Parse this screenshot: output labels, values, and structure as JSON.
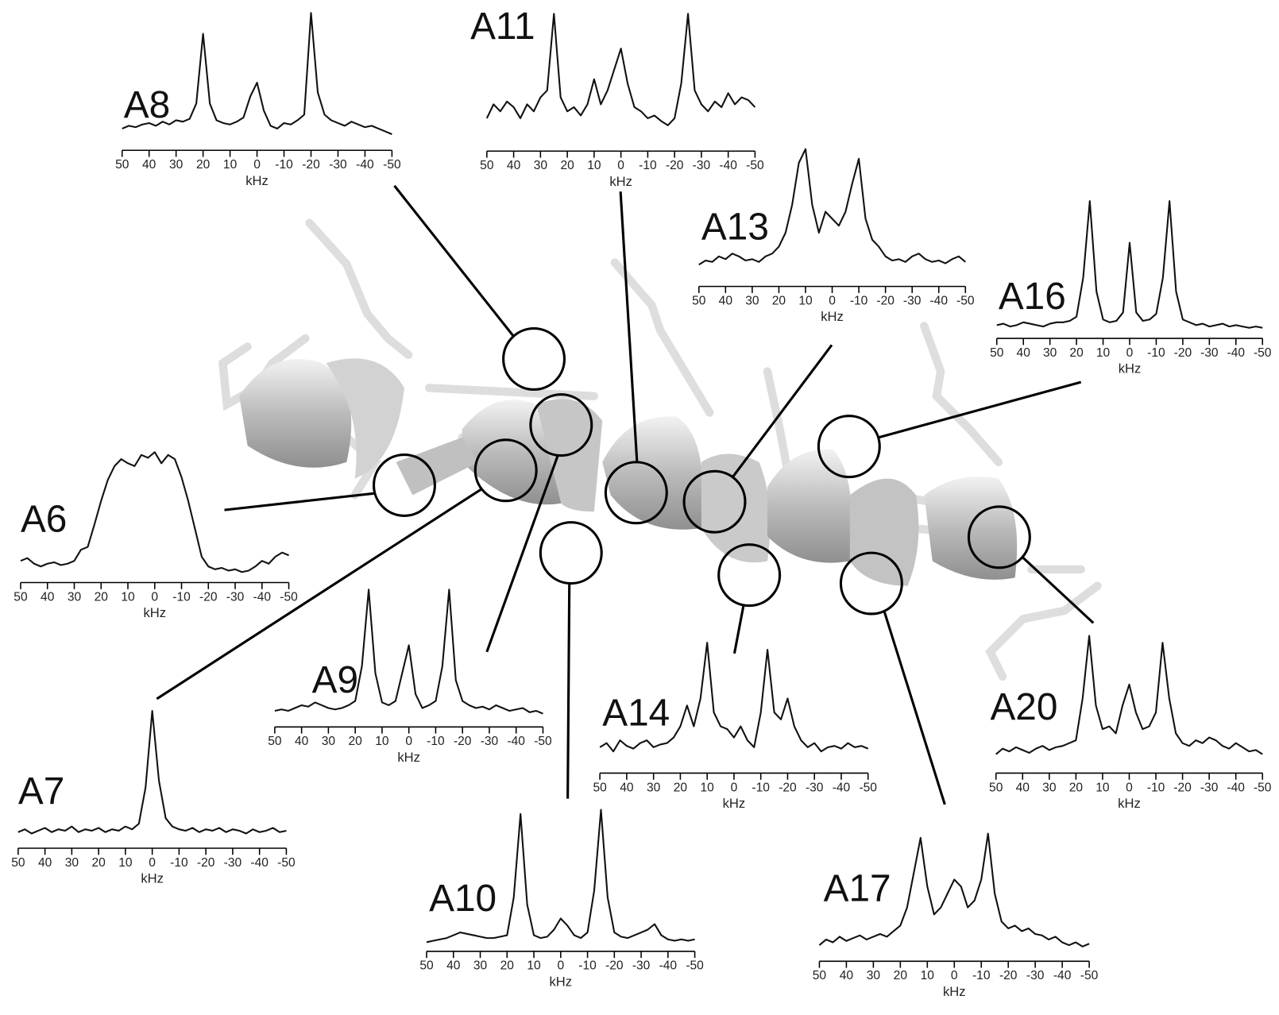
{
  "chart_data": [
    {
      "type": "line",
      "title": "A8",
      "x_label": "kHz",
      "color": "#111111",
      "xlim": [
        50,
        -50
      ],
      "ylim": [
        0,
        100
      ],
      "xticks": [
        50,
        40,
        30,
        20,
        10,
        0,
        -10,
        -20,
        -30,
        -40,
        -50
      ],
      "x": [
        50,
        47.5,
        45,
        42.5,
        40,
        37.5,
        35,
        32.5,
        30,
        27.5,
        25,
        22.5,
        20,
        17.5,
        15,
        12.5,
        10,
        7.5,
        5,
        2.5,
        0,
        -2.5,
        -5,
        -7.5,
        -10,
        -12.5,
        -15,
        -17.5,
        -20,
        -22.5,
        -25,
        -27.5,
        -30,
        -32.5,
        -35,
        -37.5,
        -40,
        -42.5,
        -45,
        -47.5,
        -50
      ],
      "values": [
        12,
        14,
        13,
        15,
        16,
        14,
        17,
        15,
        18,
        17,
        19,
        30,
        80,
        30,
        18,
        16,
        15,
        17,
        20,
        35,
        45,
        25,
        14,
        12,
        16,
        15,
        18,
        22,
        95,
        38,
        22,
        18,
        16,
        14,
        17,
        15,
        13,
        14,
        12,
        10,
        8
      ]
    },
    {
      "type": "line",
      "title": "A11",
      "x_label": "kHz",
      "color": "#111111",
      "xlim": [
        50,
        -50
      ],
      "ylim": [
        0,
        100
      ],
      "xticks": [
        50,
        40,
        30,
        20,
        10,
        0,
        -10,
        -20,
        -30,
        -40,
        -50
      ],
      "x": [
        50,
        47.5,
        45,
        42.5,
        40,
        37.5,
        35,
        32.5,
        30,
        27.5,
        25,
        22.5,
        20,
        17.5,
        15,
        12.5,
        10,
        7.5,
        5,
        2.5,
        0,
        -2.5,
        -5,
        -7.5,
        -10,
        -12.5,
        -15,
        -17.5,
        -20,
        -22.5,
        -25,
        -27.5,
        -30,
        -32.5,
        -35,
        -37.5,
        -40,
        -42.5,
        -45,
        -47.5,
        -50
      ],
      "values": [
        20,
        30,
        25,
        32,
        28,
        20,
        30,
        25,
        35,
        40,
        95,
        35,
        25,
        28,
        22,
        30,
        48,
        30,
        40,
        55,
        70,
        45,
        28,
        25,
        20,
        22,
        18,
        15,
        20,
        45,
        95,
        40,
        30,
        25,
        32,
        28,
        38,
        30,
        35,
        33,
        28
      ]
    },
    {
      "type": "line",
      "title": "A13",
      "x_label": "kHz",
      "color": "#111111",
      "xlim": [
        50,
        -50
      ],
      "ylim": [
        0,
        100
      ],
      "xticks": [
        50,
        40,
        30,
        20,
        10,
        0,
        -10,
        -20,
        -30,
        -40,
        -50
      ],
      "x": [
        50,
        47.5,
        45,
        42.5,
        40,
        37.5,
        35,
        32.5,
        30,
        27.5,
        25,
        22.5,
        20,
        17.5,
        15,
        12.5,
        10,
        7.5,
        5,
        2.5,
        0,
        -2.5,
        -5,
        -7.5,
        -10,
        -12.5,
        -15,
        -17.5,
        -20,
        -22.5,
        -25,
        -27.5,
        -30,
        -32.5,
        -35,
        -37.5,
        -40,
        -42.5,
        -45,
        -47.5,
        -50
      ],
      "values": [
        12,
        15,
        14,
        18,
        16,
        20,
        18,
        15,
        16,
        14,
        18,
        20,
        25,
        35,
        55,
        85,
        95,
        55,
        35,
        50,
        45,
        40,
        50,
        70,
        88,
        45,
        30,
        25,
        18,
        15,
        16,
        14,
        18,
        20,
        16,
        14,
        15,
        13,
        16,
        18,
        14
      ]
    },
    {
      "type": "line",
      "title": "A16",
      "x_label": "kHz",
      "color": "#111111",
      "xlim": [
        50,
        -50
      ],
      "ylim": [
        0,
        100
      ],
      "xticks": [
        50,
        40,
        30,
        20,
        10,
        0,
        -10,
        -20,
        -30,
        -40,
        -50
      ],
      "x": [
        50,
        47.5,
        45,
        42.5,
        40,
        37.5,
        35,
        32.5,
        30,
        27.5,
        25,
        22.5,
        20,
        17.5,
        15,
        12.5,
        10,
        7.5,
        5,
        2.5,
        0,
        -2.5,
        -5,
        -7.5,
        -10,
        -12.5,
        -15,
        -17.5,
        -20,
        -22.5,
        -25,
        -27.5,
        -30,
        -32.5,
        -35,
        -37.5,
        -40,
        -42.5,
        -45,
        -47.5,
        -50
      ],
      "values": [
        6,
        7,
        5,
        6,
        8,
        7,
        6,
        5,
        7,
        8,
        8,
        9,
        12,
        40,
        95,
        30,
        10,
        8,
        9,
        15,
        65,
        15,
        9,
        10,
        14,
        40,
        95,
        30,
        10,
        8,
        6,
        7,
        5,
        6,
        7,
        5,
        6,
        5,
        4,
        5,
        4
      ]
    },
    {
      "type": "line",
      "title": "A6",
      "x_label": "kHz",
      "color": "#111111",
      "xlim": [
        50,
        -50
      ],
      "ylim": [
        0,
        100
      ],
      "xticks": [
        50,
        40,
        30,
        20,
        10,
        0,
        -10,
        -20,
        -30,
        -40,
        -50
      ],
      "x": [
        50,
        47.5,
        45,
        42.5,
        40,
        37.5,
        35,
        32.5,
        30,
        27.5,
        25,
        22.5,
        20,
        17.5,
        15,
        12.5,
        10,
        7.5,
        5,
        2.5,
        0,
        -2.5,
        -5,
        -7.5,
        -10,
        -12.5,
        -15,
        -17.5,
        -20,
        -22.5,
        -25,
        -27.5,
        -30,
        -32.5,
        -35,
        -37.5,
        -40,
        -42.5,
        -45,
        -47.5,
        -50
      ],
      "values": [
        12,
        14,
        10,
        8,
        10,
        11,
        9,
        10,
        12,
        20,
        22,
        38,
        55,
        70,
        80,
        85,
        82,
        80,
        88,
        86,
        90,
        82,
        88,
        85,
        72,
        55,
        35,
        15,
        8,
        6,
        7,
        5,
        6,
        4,
        5,
        8,
        12,
        10,
        15,
        18,
        16
      ]
    },
    {
      "type": "line",
      "title": "A9",
      "x_label": "kHz",
      "color": "#111111",
      "xlim": [
        50,
        -50
      ],
      "ylim": [
        0,
        100
      ],
      "xticks": [
        50,
        40,
        30,
        20,
        10,
        0,
        -10,
        -20,
        -30,
        -40,
        -50
      ],
      "x": [
        50,
        47.5,
        45,
        42.5,
        40,
        37.5,
        35,
        32.5,
        30,
        27.5,
        25,
        22.5,
        20,
        17.5,
        15,
        12.5,
        10,
        7.5,
        5,
        2.5,
        0,
        -2.5,
        -5,
        -7.5,
        -10,
        -12.5,
        -15,
        -17.5,
        -20,
        -22.5,
        -25,
        -27.5,
        -30,
        -32.5,
        -35,
        -37.5,
        -40,
        -42.5,
        -45,
        -47.5,
        -50
      ],
      "values": [
        8,
        9,
        8,
        10,
        12,
        11,
        14,
        12,
        10,
        9,
        10,
        12,
        15,
        40,
        95,
        35,
        14,
        12,
        15,
        35,
        55,
        20,
        10,
        12,
        15,
        40,
        95,
        30,
        15,
        12,
        10,
        11,
        9,
        12,
        10,
        8,
        9,
        10,
        7,
        8,
        6
      ]
    },
    {
      "type": "line",
      "title": "A14",
      "x_label": "kHz",
      "color": "#111111",
      "xlim": [
        50,
        -50
      ],
      "ylim": [
        0,
        100
      ],
      "xticks": [
        50,
        40,
        30,
        20,
        10,
        0,
        -10,
        -20,
        -30,
        -40,
        -50
      ],
      "x": [
        50,
        47.5,
        45,
        42.5,
        40,
        37.5,
        35,
        32.5,
        30,
        27.5,
        25,
        22.5,
        20,
        17.5,
        15,
        12.5,
        10,
        7.5,
        5,
        2.5,
        0,
        -2.5,
        -5,
        -7.5,
        -10,
        -12.5,
        -15,
        -17.5,
        -20,
        -22.5,
        -25,
        -27.5,
        -30,
        -32.5,
        -35,
        -37.5,
        -40,
        -42.5,
        -45,
        -47.5,
        -50
      ],
      "values": [
        15,
        18,
        12,
        20,
        16,
        14,
        18,
        20,
        15,
        17,
        18,
        22,
        30,
        45,
        30,
        50,
        90,
        40,
        30,
        28,
        22,
        30,
        20,
        15,
        40,
        85,
        40,
        35,
        50,
        30,
        20,
        15,
        18,
        12,
        15,
        16,
        14,
        18,
        15,
        16,
        14
      ]
    },
    {
      "type": "line",
      "title": "A20",
      "x_label": "kHz",
      "color": "#111111",
      "xlim": [
        50,
        -50
      ],
      "ylim": [
        0,
        100
      ],
      "xticks": [
        50,
        40,
        30,
        20,
        10,
        0,
        -10,
        -20,
        -30,
        -40,
        -50
      ],
      "x": [
        50,
        47.5,
        45,
        42.5,
        40,
        37.5,
        35,
        32.5,
        30,
        27.5,
        25,
        22.5,
        20,
        17.5,
        15,
        12.5,
        10,
        7.5,
        5,
        2.5,
        0,
        -2.5,
        -5,
        -7.5,
        -10,
        -12.5,
        -15,
        -17.5,
        -20,
        -22.5,
        -25,
        -27.5,
        -30,
        -32.5,
        -35,
        -37.5,
        -40,
        -42.5,
        -45,
        -47.5,
        -50
      ],
      "values": [
        10,
        14,
        12,
        15,
        13,
        11,
        14,
        16,
        13,
        15,
        16,
        18,
        20,
        50,
        95,
        45,
        28,
        30,
        25,
        45,
        60,
        40,
        28,
        30,
        40,
        90,
        50,
        25,
        18,
        16,
        20,
        18,
        22,
        20,
        16,
        14,
        18,
        15,
        12,
        13,
        10
      ]
    },
    {
      "type": "line",
      "title": "A7",
      "x_label": "kHz",
      "color": "#111111",
      "xlim": [
        50,
        -50
      ],
      "ylim": [
        0,
        100
      ],
      "xticks": [
        50,
        40,
        30,
        20,
        10,
        0,
        -10,
        -20,
        -30,
        -40,
        -50
      ],
      "x": [
        50,
        47.5,
        45,
        42.5,
        40,
        37.5,
        35,
        32.5,
        30,
        27.5,
        25,
        22.5,
        20,
        17.5,
        15,
        12.5,
        10,
        7.5,
        5,
        2.5,
        0,
        -2.5,
        -5,
        -7.5,
        -10,
        -12.5,
        -15,
        -17.5,
        -20,
        -22.5,
        -25,
        -27.5,
        -30,
        -32.5,
        -35,
        -37.5,
        -40,
        -42.5,
        -45,
        -47.5,
        -50
      ],
      "values": [
        8,
        10,
        7,
        9,
        11,
        8,
        10,
        9,
        12,
        8,
        10,
        9,
        11,
        8,
        10,
        9,
        12,
        10,
        14,
        40,
        95,
        45,
        18,
        12,
        10,
        9,
        11,
        8,
        10,
        9,
        11,
        8,
        10,
        9,
        7,
        10,
        8,
        9,
        11,
        8,
        9
      ]
    },
    {
      "type": "line",
      "title": "A10",
      "x_label": "kHz",
      "color": "#111111",
      "xlim": [
        50,
        -50
      ],
      "ylim": [
        0,
        100
      ],
      "xticks": [
        50,
        40,
        30,
        20,
        10,
        0,
        -10,
        -20,
        -30,
        -40,
        -50
      ],
      "x": [
        50,
        47.5,
        45,
        42.5,
        40,
        37.5,
        35,
        32.5,
        30,
        27.5,
        25,
        22.5,
        20,
        17.5,
        15,
        12.5,
        10,
        7.5,
        5,
        2.5,
        0,
        -2.5,
        -5,
        -7.5,
        -10,
        -12.5,
        -15,
        -17.5,
        -20,
        -22.5,
        -25,
        -27.5,
        -30,
        -32.5,
        -35,
        -37.5,
        -40,
        -42.5,
        -45,
        -47.5,
        -50
      ],
      "values": [
        3,
        4,
        5,
        6,
        8,
        10,
        9,
        8,
        7,
        6,
        6,
        7,
        8,
        35,
        95,
        30,
        8,
        6,
        7,
        12,
        20,
        15,
        8,
        6,
        10,
        40,
        98,
        35,
        10,
        7,
        6,
        8,
        10,
        12,
        16,
        8,
        5,
        4,
        5,
        4,
        5
      ]
    },
    {
      "type": "line",
      "title": "A17",
      "x_label": "kHz",
      "color": "#111111",
      "xlim": [
        50,
        -50
      ],
      "ylim": [
        0,
        100
      ],
      "xticks": [
        50,
        40,
        30,
        20,
        10,
        0,
        -10,
        -20,
        -30,
        -40,
        -50
      ],
      "x": [
        50,
        47.5,
        45,
        42.5,
        40,
        37.5,
        35,
        32.5,
        30,
        27.5,
        25,
        22.5,
        20,
        17.5,
        15,
        12.5,
        10,
        7.5,
        5,
        2.5,
        0,
        -2.5,
        -5,
        -7.5,
        -10,
        -12.5,
        -15,
        -17.5,
        -20,
        -22.5,
        -25,
        -27.5,
        -30,
        -32.5,
        -35,
        -37.5,
        -40,
        -42.5,
        -45,
        -47.5,
        -50
      ],
      "values": [
        8,
        12,
        10,
        14,
        11,
        13,
        15,
        12,
        14,
        16,
        14,
        18,
        22,
        35,
        60,
        85,
        50,
        30,
        35,
        45,
        55,
        50,
        35,
        40,
        55,
        88,
        45,
        25,
        20,
        22,
        18,
        20,
        16,
        15,
        12,
        14,
        10,
        8,
        10,
        7,
        9
      ]
    }
  ]
}
